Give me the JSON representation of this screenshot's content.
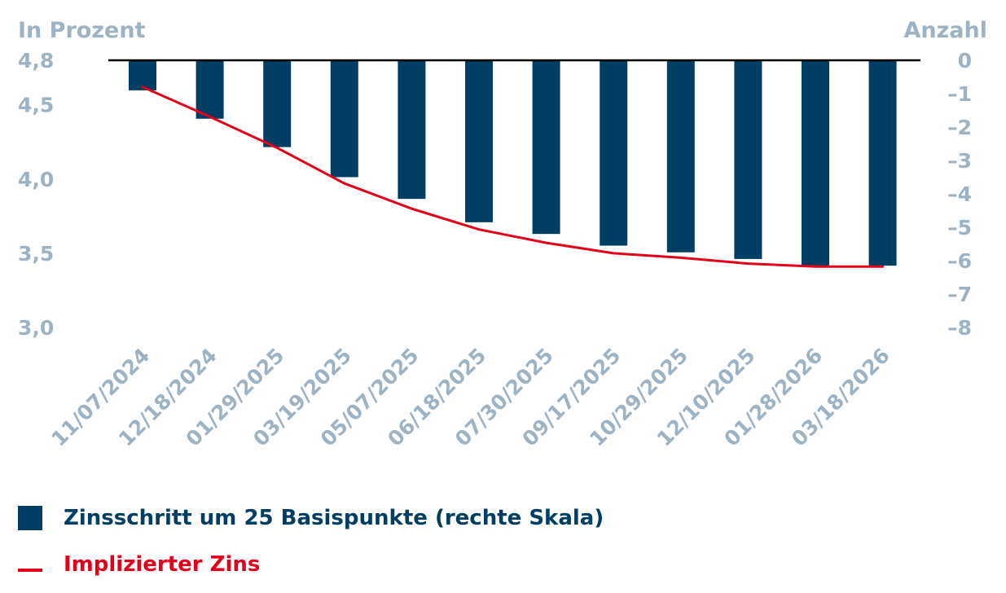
{
  "colors": {
    "bar": "#003f63",
    "line": "#e2001a",
    "axis_text": "#9db3c4",
    "baseline": "#000000"
  },
  "chart_data": {
    "type": "bar",
    "left_axis_title": "In Prozent",
    "right_axis_title": "Anzahl",
    "categories": [
      "11/07/2024",
      "12/18/2024",
      "01/29/2025",
      "03/19/2025",
      "05/07/2025",
      "06/18/2025",
      "07/30/2025",
      "09/17/2025",
      "10/29/2025",
      "12/10/2025",
      "01/28/2026",
      "03/18/2026"
    ],
    "left_ticks": [
      "4,8",
      "4,5",
      "4,0",
      "3,5",
      "3,0"
    ],
    "left_tick_values": [
      4.8,
      4.5,
      4.0,
      3.5,
      3.0
    ],
    "left_ylim": [
      3.0,
      4.8
    ],
    "right_ticks": [
      "0",
      "–1",
      "–2",
      "–3",
      "–4",
      "–5",
      "–6",
      "–7",
      "–8"
    ],
    "right_tick_values": [
      0,
      -1,
      -2,
      -3,
      -4,
      -5,
      -6,
      -7,
      -8
    ],
    "right_ylim": [
      -8,
      0
    ],
    "series": [
      {
        "name": "Zinsschritt um 25 Basispunkte (rechte Skala)",
        "type": "bar",
        "axis": "right",
        "values": [
          -0.9,
          -1.75,
          -2.6,
          -3.5,
          -4.15,
          -4.85,
          -5.2,
          -5.55,
          -5.75,
          -5.95,
          -6.15,
          -6.15
        ]
      },
      {
        "name": "Implizierter Zins",
        "type": "line",
        "axis": "left",
        "values": [
          4.62,
          4.42,
          4.21,
          3.97,
          3.8,
          3.66,
          3.57,
          3.5,
          3.47,
          3.43,
          3.41,
          3.41
        ]
      }
    ]
  },
  "legend": {
    "bar_label": "Zinsschritt um 25 Basispunkte (rechte Skala)",
    "line_label": "Implizierter Zins"
  }
}
